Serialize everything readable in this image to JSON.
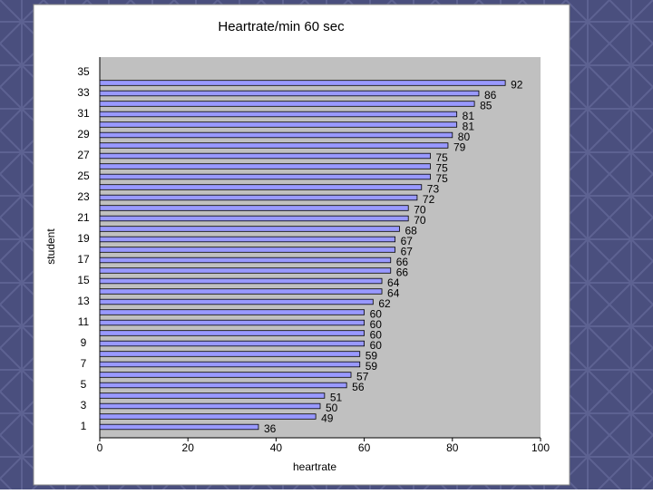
{
  "chart_data": {
    "type": "bar",
    "orientation": "horizontal",
    "title": "Heartrate/min 60 sec",
    "x_label": "heartrate",
    "y_label": "student",
    "categories": [
      "1",
      null,
      "3",
      null,
      "5",
      null,
      "7",
      null,
      "9",
      null,
      "11",
      null,
      "13",
      null,
      "15",
      null,
      "17",
      null,
      "19",
      null,
      "21",
      null,
      "23",
      null,
      "25",
      null,
      "27",
      null,
      "29",
      null,
      "31",
      null,
      "33",
      null,
      "35"
    ],
    "values": [
      36,
      49,
      50,
      51,
      56,
      57,
      59,
      59,
      60,
      60,
      60,
      60,
      62,
      64,
      64,
      66,
      66,
      67,
      67,
      68,
      70,
      70,
      72,
      73,
      75,
      75,
      75,
      79,
      80,
      81,
      81,
      85,
      86,
      92,
      null
    ],
    "color": "#9999ff",
    "xlim": [
      0,
      100
    ],
    "xticks": [
      0,
      20,
      40,
      60,
      80,
      100
    ]
  }
}
